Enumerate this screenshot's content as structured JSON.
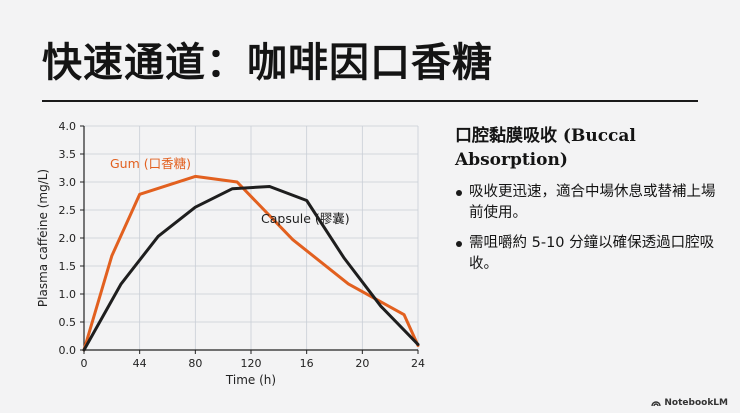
{
  "slide": {
    "title": "快速通道：咖啡因口香糖"
  },
  "panel": {
    "heading": "口腔黏膜吸收 (Buccal Absorption)",
    "bullets": [
      "吸收更迅速，適合中場休息或替補上場前使用。",
      "需咀嚼約 5-10 分鐘以確保透過口腔吸收。"
    ]
  },
  "watermark": {
    "text": "NotebookLM",
    "icon": "notebooklm-logo-icon"
  },
  "chart_data": {
    "type": "line",
    "title": "",
    "xlabel": "Time (h)",
    "ylabel": "Plasma caffeine (mg/L)",
    "x_tick_labels": [
      "0",
      "44",
      "80",
      "120",
      "16",
      "20",
      "24"
    ],
    "y_tick_labels": [
      "0.0",
      "0.5",
      "1.0",
      "1.5",
      "2.0",
      "2.5",
      "3.0",
      "3.5",
      "4.0"
    ],
    "ylim": [
      0,
      4
    ],
    "grid": true,
    "series": [
      {
        "name": "Gum (口香糖)",
        "color": "#e2601f",
        "points": [
          [
            0,
            0.0
          ],
          [
            2,
            1.68
          ],
          [
            4,
            2.78
          ],
          [
            8,
            3.1
          ],
          [
            11,
            3.0
          ],
          [
            15,
            1.97
          ],
          [
            19,
            1.18
          ],
          [
            23,
            0.63
          ],
          [
            24,
            0.08
          ]
        ]
      },
      {
        "name": "Capsule (膠囊)",
        "color": "#1e1e1e",
        "points": [
          [
            0,
            0.0
          ],
          [
            4,
            1.18
          ],
          [
            8,
            2.03
          ],
          [
            12,
            2.55
          ],
          [
            16,
            2.88
          ],
          [
            20,
            2.92
          ],
          [
            24,
            2.67
          ],
          [
            28,
            1.65
          ],
          [
            32,
            0.78
          ],
          [
            36,
            0.1
          ]
        ]
      }
    ],
    "series_x_scales": [
      24,
      36
    ]
  }
}
